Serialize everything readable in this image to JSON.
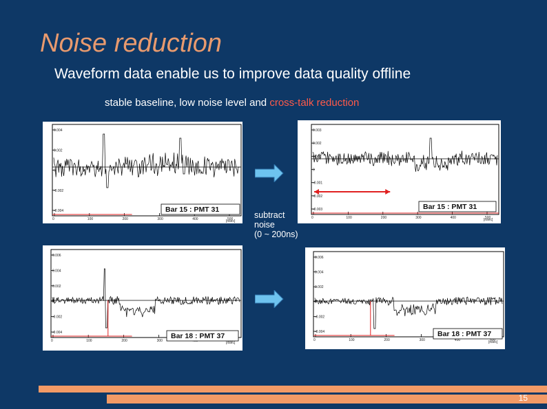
{
  "slide": {
    "title": "Noise reduction",
    "subtitle": "Waveform data enable us to improve data quality offline",
    "caption_prefix": "stable baseline, low noise level and ",
    "caption_highlight": "cross-talk reduction",
    "note_line1": "subtract",
    "note_line2": "noise",
    "note_line3": "(0 ~ 200ns)",
    "page_number": "15"
  },
  "colors": {
    "background": "#0e3866",
    "title": "#e89a6e",
    "highlight": "#ff5a4a",
    "arrow": "#6ec3ef",
    "footer": "#f29a66"
  },
  "plots": [
    {
      "id": "top-left",
      "label": "Bar 15 : PMT 31",
      "xunit": "[nsec]",
      "xticks": [
        "0",
        "100",
        "200",
        "300",
        "400",
        "500"
      ],
      "yticks": [
        "0.004",
        "0.002",
        "0",
        "-0.002",
        "-0.004"
      ]
    },
    {
      "id": "top-right",
      "label": "Bar 15 : PMT 31",
      "xunit": "[nsec]",
      "xticks": [
        "0",
        "100",
        "200",
        "300",
        "400",
        "500"
      ],
      "yticks": [
        "0.003",
        "0.002",
        "0.001",
        "0",
        "-0.001",
        "-0.002",
        "-0.003"
      ]
    },
    {
      "id": "bottom-left",
      "label": "Bar 18 : PMT 37",
      "xunit": "[nsec]",
      "xticks": [
        "0",
        "100",
        "200",
        "300",
        "400",
        "500"
      ],
      "yticks": [
        "0.006",
        "0.004",
        "0.002",
        "0",
        "-0.002",
        "-0.004"
      ]
    },
    {
      "id": "bottom-right",
      "label": "Bar 18 : PMT 37",
      "xunit": "[nsec]",
      "xticks": [
        "0",
        "100",
        "200",
        "300",
        "400",
        "500"
      ],
      "yticks": [
        "0.006",
        "0.004",
        "0.002",
        "0",
        "-0.002",
        "-0.004"
      ]
    }
  ]
}
